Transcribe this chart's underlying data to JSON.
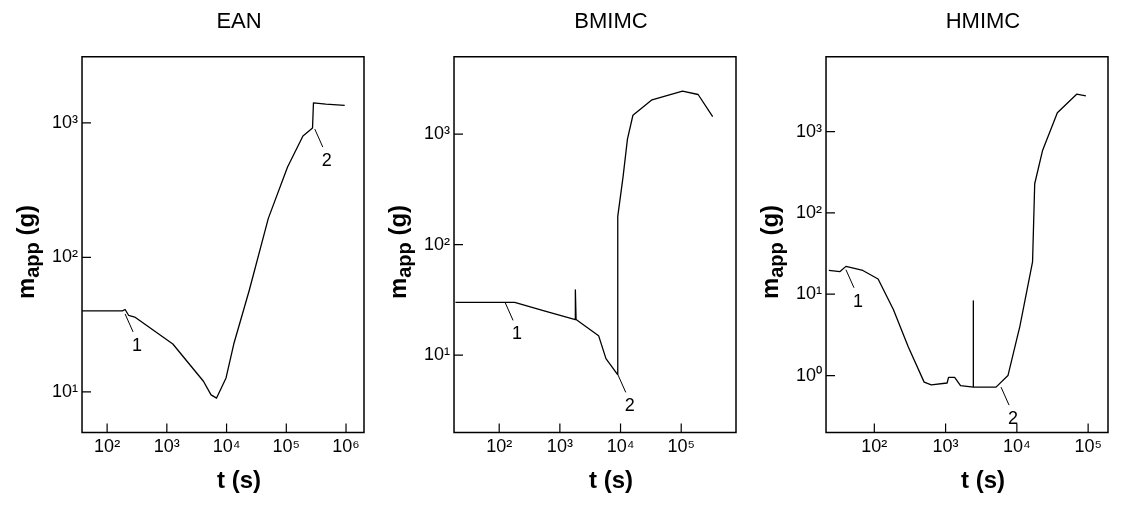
{
  "chart_data": [
    {
      "type": "line",
      "title": "EAN",
      "xlabel": "t (s)",
      "ylabel": "m$_{app}$ (g)",
      "log": "xy",
      "marker": "none",
      "xlim": [
        38,
        2000000
      ],
      "ylim": [
        5,
        3100
      ],
      "xticks": [
        {
          "value": 100,
          "label": "10²"
        },
        {
          "value": 1000,
          "label": "10³"
        },
        {
          "value": 10000,
          "label": "10⁴"
        },
        {
          "value": 100000,
          "label": "10⁵"
        },
        {
          "value": 1000000,
          "label": "10⁶"
        }
      ],
      "yticks": [
        {
          "value": 10,
          "label": "10¹"
        },
        {
          "value": 100,
          "label": "10²"
        },
        {
          "value": 1000,
          "label": "10³"
        }
      ],
      "series": [
        {
          "color": "#000000",
          "x": [
            38,
            180,
            200,
            230,
            290,
            1260,
            4100,
            5500,
            6800,
            9800,
            13200,
            24000,
            50000,
            105000,
            190000,
            275000,
            285000,
            460000,
            950000
          ],
          "values": [
            40,
            40,
            41,
            37,
            36,
            22.7,
            12,
            9.5,
            9,
            12.7,
            22.7,
            57,
            195,
            470,
            800,
            915,
            1410,
            1380,
            1350
          ]
        }
      ],
      "annotations": [
        {
          "text": "1",
          "x": 200,
          "y": 38
        },
        {
          "text": "2",
          "x": 300000,
          "y": 900
        }
      ]
    },
    {
      "type": "line",
      "title": "BMIMC",
      "xlabel": "t (s)",
      "ylabel": "m$_{app}$ (g)",
      "log": "xy",
      "marker": "none",
      "xlim": [
        18,
        800000
      ],
      "ylim": [
        2,
        5000
      ],
      "xticks": [
        {
          "value": 100,
          "label": "10²"
        },
        {
          "value": 1000,
          "label": "10³"
        },
        {
          "value": 10000,
          "label": "10⁴"
        },
        {
          "value": 100000,
          "label": "10⁵"
        }
      ],
      "yticks": [
        {
          "value": 10,
          "label": "10¹"
        },
        {
          "value": 100,
          "label": "10²"
        },
        {
          "value": 1000,
          "label": "10³"
        }
      ],
      "series": [
        {
          "color": "#000000",
          "x": [
            19,
            180,
            570,
            1800,
            1800,
            1850,
            4350,
            5750,
            8900,
            9000,
            11000,
            13000,
            16000,
            33000,
            105000,
            190000,
            330000
          ],
          "values": [
            30,
            30,
            25,
            21,
            39,
            21,
            15,
            9.3,
            6.7,
            180,
            410,
            900,
            1480,
            2040,
            2450,
            2280,
            1440
          ]
        }
      ],
      "annotations": [
        {
          "text": "1",
          "x": 125,
          "y": 30
        },
        {
          "text": "2",
          "x": 9000,
          "y": 6.7
        }
      ]
    },
    {
      "type": "line",
      "title": "HMIMC",
      "xlabel": "t (s)",
      "ylabel": "m$_{app}$ (g)",
      "log": "xy",
      "marker": "none",
      "xlim": [
        21,
        190000
      ],
      "ylim": [
        0.2,
        8300
      ],
      "xticks": [
        {
          "value": 100,
          "label": "10²"
        },
        {
          "value": 1000,
          "label": "10³"
        },
        {
          "value": 10000,
          "label": "10⁴"
        },
        {
          "value": 100000,
          "label": "10⁵"
        }
      ],
      "yticks": [
        {
          "value": 1,
          "label": "10⁰"
        },
        {
          "value": 10,
          "label": "10¹"
        },
        {
          "value": 100,
          "label": "10²"
        },
        {
          "value": 1000,
          "label": "10³"
        }
      ],
      "series": [
        {
          "color": "#000000",
          "x": [
            23,
            33,
            40,
            69,
            113,
            185,
            300,
            500,
            630,
            1050,
            1100,
            1340,
            1620,
            2450,
            2450,
            2450,
            5100,
            7500,
            11000,
            16600,
            17800,
            23000,
            37000,
            69000,
            93000
          ],
          "values": [
            19.6,
            19,
            22,
            19.6,
            15.4,
            6.5,
            2.25,
            0.83,
            0.77,
            0.81,
            0.95,
            0.95,
            0.75,
            0.72,
            8.3,
            0.72,
            0.72,
            1,
            4,
            25,
            228,
            590,
            1700,
            2880,
            2750
          ]
        }
      ],
      "annotations": [
        {
          "text": "1",
          "x": 40,
          "y": 20
        },
        {
          "text": "2",
          "x": 6000,
          "y": 0.72
        }
      ]
    }
  ]
}
